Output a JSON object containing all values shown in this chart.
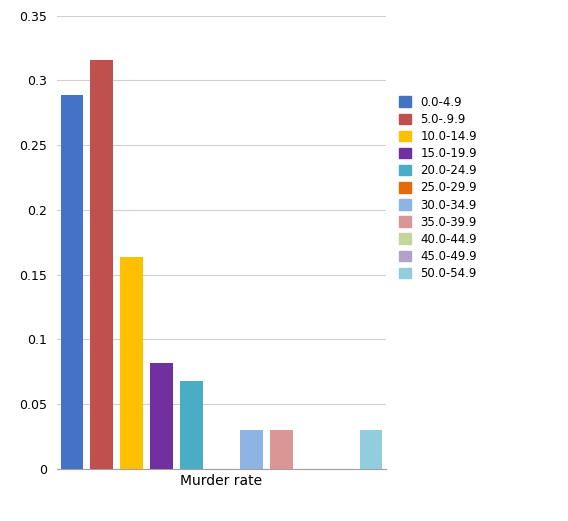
{
  "categories": [
    "0.0-4.9",
    "5.0-.9.9",
    "10.0-14.9",
    "15.0-19.9",
    "20.0-24.9",
    "25.0-29.9",
    "30.0-34.9",
    "35.0-39.9",
    "40.0-44.9",
    "45.0-49.9",
    "50.0-54.9"
  ],
  "legend_labels": [
    "0.0-4.9",
    "5.0-.9.9",
    "10.0-14.9",
    "15.0-19.9",
    "20.0-24.9",
    "25.0-29.9",
    "30.0-34.9",
    "35.0-39.9",
    "40.0-44.9",
    "45.0-49.9",
    "50.0-54.9"
  ],
  "values": [
    0.289,
    0.316,
    0.164,
    0.082,
    0.068,
    0.0,
    0.03,
    0.03,
    0.0,
    0.0,
    0.03
  ],
  "bar_colors": [
    "#4472C4",
    "#C0504D",
    "#FFC000",
    "#7030A0",
    "#4BACC6",
    "#E36C09",
    "#8DB4E2",
    "#DA9694",
    "#C3D69B",
    "#B2A2C7",
    "#92CDDC"
  ],
  "xlabel": "Murder rate",
  "ylabel": "",
  "ylim": [
    0,
    0.35
  ],
  "yticks": [
    0,
    0.05,
    0.1,
    0.15,
    0.2,
    0.25,
    0.3,
    0.35
  ],
  "ytick_labels": [
    "0",
    "0.05",
    "0.1",
    "0.15",
    "0.2",
    "0.25",
    "0.3",
    "0.35"
  ],
  "title": "",
  "background_color": "#FFFFFF",
  "grid_color": "#D0D0D0"
}
